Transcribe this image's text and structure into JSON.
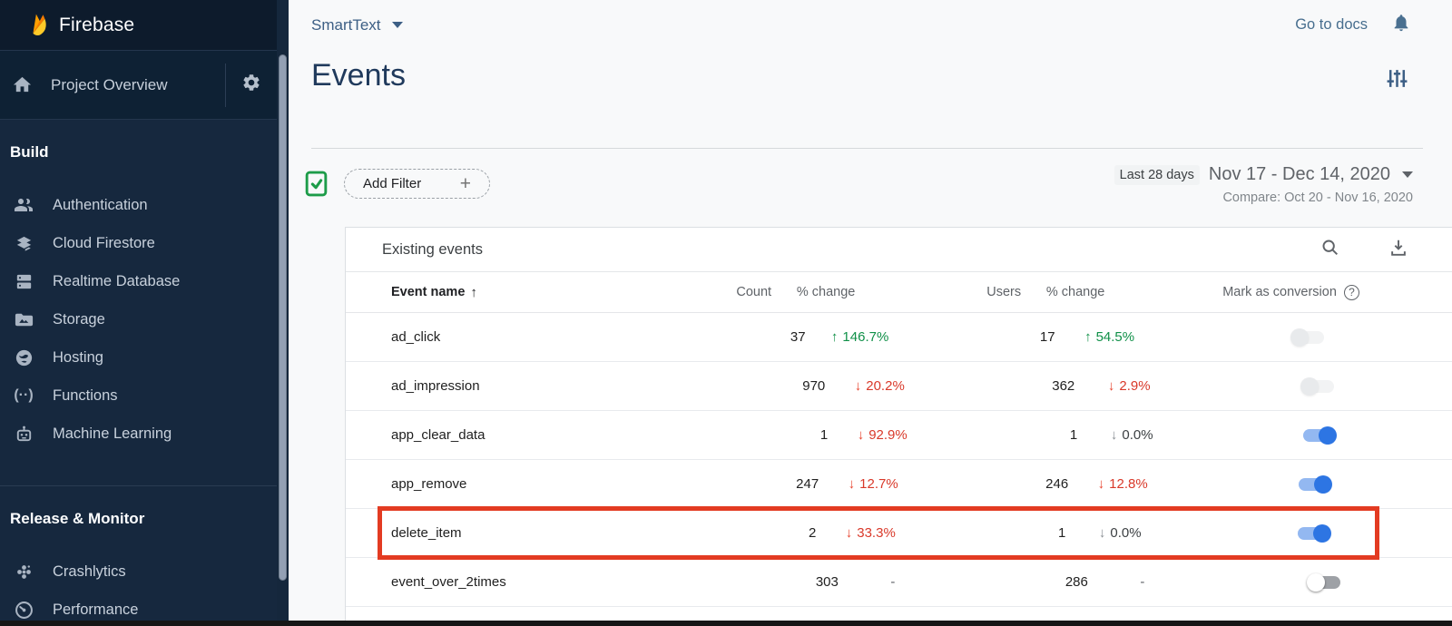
{
  "colors": {
    "positive_green": "#109048",
    "negative_red": "#d9392a",
    "negative_red_arrow": "#e8432e",
    "toggle_on_thumb": "#2d75e3",
    "toggle_on_track": "#93b8f1",
    "annotation_red": "#e33b22",
    "link_blue": "#476e8e"
  },
  "sidebar": {
    "brand": "Firebase",
    "logo_icon": "firebase-flame-icon",
    "project_overview": {
      "label": "Project Overview",
      "home_icon": "home-icon",
      "settings_icon": "gear-icon"
    },
    "sections": [
      {
        "label": "Build",
        "items": [
          {
            "label": "Authentication",
            "icon": "people-icon"
          },
          {
            "label": "Cloud Firestore",
            "icon": "firestore-icon"
          },
          {
            "label": "Realtime Database",
            "icon": "database-icon"
          },
          {
            "label": "Storage",
            "icon": "storage-folder-icon"
          },
          {
            "label": "Hosting",
            "icon": "globe-icon"
          },
          {
            "label": "Functions",
            "icon": "functions-icon"
          },
          {
            "label": "Machine Learning",
            "icon": "robot-icon"
          }
        ]
      },
      {
        "label": "Release & Monitor",
        "items": [
          {
            "label": "Crashlytics",
            "icon": "crashlytics-icon"
          },
          {
            "label": "Performance",
            "icon": "speedometer-icon"
          }
        ]
      }
    ]
  },
  "topbar": {
    "project_name": "SmartText",
    "go_to_docs": "Go to docs",
    "bell_icon": "notifications-bell-icon"
  },
  "page": {
    "title": "Events",
    "filter_icon": "tune-sliders-icon"
  },
  "filter_bar": {
    "status_icon": "document-check-icon",
    "add_filter_label": "Add Filter",
    "plus_icon": "plus-icon",
    "period_label": "Last 28 days",
    "date_range": "Nov 17 - Dec 14, 2020",
    "compare_label": "Compare: Oct 20 - Nov 16, 2020"
  },
  "table": {
    "title": "Existing events",
    "search_icon": "search-icon",
    "download_icon": "download-icon",
    "headers": {
      "event_name": "Event name",
      "count": "Count",
      "pct_change_count": "% change",
      "users": "Users",
      "pct_change_users": "% change",
      "conversion": "Mark as conversion"
    },
    "rows": [
      {
        "name": "ad_click",
        "count": "37",
        "count_change": {
          "dir": "up",
          "value": "146.7%",
          "color": "green"
        },
        "users": "17",
        "users_change": {
          "dir": "up",
          "value": "54.5%",
          "color": "green"
        },
        "toggle": "off-faded"
      },
      {
        "name": "ad_impression",
        "count": "970",
        "count_change": {
          "dir": "down",
          "value": "20.2%",
          "color": "red"
        },
        "users": "362",
        "users_change": {
          "dir": "down",
          "value": "2.9%",
          "color": "red"
        },
        "toggle": "off-faded"
      },
      {
        "name": "app_clear_data",
        "count": "1",
        "count_change": {
          "dir": "down",
          "value": "92.9%",
          "color": "red"
        },
        "users": "1",
        "users_change": {
          "dir": "down",
          "value": "0.0%",
          "color": "gray"
        },
        "toggle": "on"
      },
      {
        "name": "app_remove",
        "count": "247",
        "count_change": {
          "dir": "down",
          "value": "12.7%",
          "color": "red"
        },
        "users": "246",
        "users_change": {
          "dir": "down",
          "value": "12.8%",
          "color": "red"
        },
        "toggle": "on"
      },
      {
        "name": "delete_item",
        "count": "2",
        "count_change": {
          "dir": "down",
          "value": "33.3%",
          "color": "red"
        },
        "users": "1",
        "users_change": {
          "dir": "down",
          "value": "0.0%",
          "color": "gray"
        },
        "toggle": "on",
        "highlighted": true
      },
      {
        "name": "event_over_2times",
        "count": "303",
        "count_change": {
          "dir": null,
          "value": "-",
          "color": "gray"
        },
        "users": "286",
        "users_change": {
          "dir": null,
          "value": "-",
          "color": "gray"
        },
        "toggle": "off"
      }
    ]
  }
}
